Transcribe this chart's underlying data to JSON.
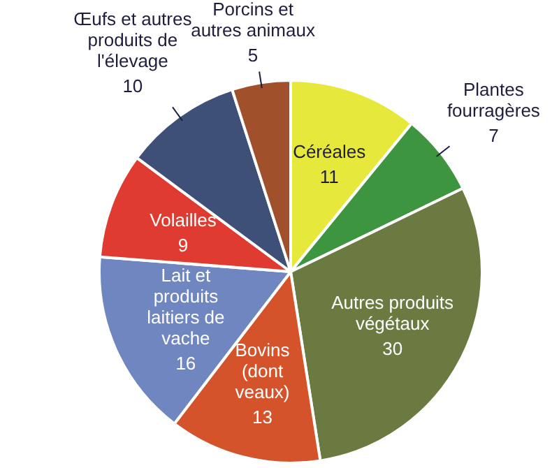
{
  "chart_data": {
    "type": "pie",
    "categories": [
      "Céréales",
      "Plantes fourragères",
      "Autres produits végétaux",
      "Bovins (dont veaux)",
      "Lait et produits laitiers de vache",
      "Volailles",
      "Œufs et autres produits de l'élevage",
      "Porcins et autres animaux"
    ],
    "values": [
      11,
      7,
      30,
      13,
      16,
      9,
      10,
      5
    ],
    "colors": [
      "#e6e83c",
      "#3d963f",
      "#6a7a40",
      "#d4532b",
      "#6f86c0",
      "#e03b30",
      "#3e5078",
      "#a0502a"
    ],
    "data_labels": true,
    "legend": false
  }
}
